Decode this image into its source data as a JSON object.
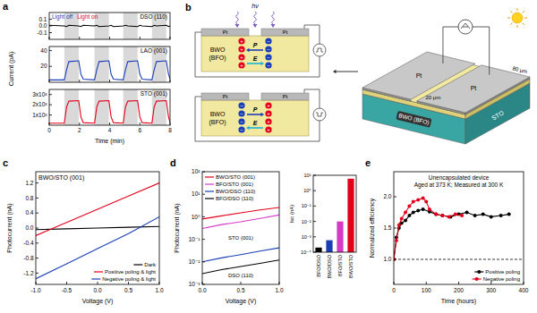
{
  "chart_data": [
    {
      "panel": "a",
      "type": "line",
      "title": "DSO (110)",
      "annotations": [
        "Light off",
        "Light on"
      ],
      "x": [
        0,
        1.0,
        1.15,
        1.3,
        1.95,
        2.1,
        2.25,
        3.0,
        3.15,
        3.3,
        3.95,
        4.1,
        4.25,
        4.9,
        5.05,
        5.2,
        5.85,
        6.0,
        6.15,
        6.8,
        6.95,
        7.1,
        7.75,
        7.9,
        8.0
      ],
      "series": [
        {
          "color": "#000000",
          "values": [
            0.01,
            0,
            -0.01,
            0.01,
            0,
            -0.01,
            0.01,
            0,
            0.01,
            -0.01,
            0,
            0.01,
            -0.01,
            0,
            0.01,
            0,
            -0.01,
            0.01,
            0,
            -0.01,
            0.01,
            0,
            0.01,
            -0.01,
            0
          ]
        }
      ],
      "light_on": [
        [
          1.0,
          1.95
        ],
        [
          3.0,
          3.95
        ],
        [
          4.9,
          5.85
        ],
        [
          6.8,
          7.75
        ]
      ],
      "xlim": [
        0,
        8
      ],
      "ylim": [
        -0.2,
        0.2
      ],
      "xticks": [
        0,
        2,
        4,
        6,
        8
      ],
      "yticks": [
        0.1,
        {
          "value": 0,
          "label": "0.0"
        },
        -0.1
      ],
      "tick_labels": "y"
    },
    {
      "type": "line",
      "title": "LAO (001)",
      "y_label": "Current (pA)",
      "x": [
        0,
        1.0,
        1.15,
        1.3,
        1.95,
        2.1,
        2.25,
        3.0,
        3.15,
        3.3,
        3.95,
        4.1,
        4.25,
        4.9,
        5.05,
        5.2,
        5.85,
        6.0,
        6.15,
        6.8,
        6.95,
        7.1,
        7.75,
        7.9,
        8.0
      ],
      "series": [
        {
          "color": "#1a3fb5",
          "values": [
            3,
            3,
            16,
            26,
            27,
            10,
            4,
            3,
            16,
            26,
            27,
            10,
            4,
            3,
            16,
            26,
            27,
            10,
            4,
            3,
            16,
            26,
            27,
            10,
            4
          ]
        }
      ],
      "light_on": [
        [
          1.0,
          1.95
        ],
        [
          3.0,
          3.95
        ],
        [
          4.9,
          5.85
        ],
        [
          6.8,
          7.75
        ]
      ],
      "xlim": [
        0,
        8
      ],
      "ylim": [
        0,
        45
      ],
      "xticks": [
        0,
        2,
        4,
        6,
        8
      ],
      "yticks": [
        20,
        40
      ],
      "tick_labels": "y"
    },
    {
      "type": "line",
      "title": "STO (001)",
      "x_label": "Time (min)",
      "x": [
        0,
        1.0,
        1.15,
        1.3,
        1.95,
        2.1,
        2.25,
        3.0,
        3.15,
        3.3,
        3.95,
        4.1,
        4.25,
        4.9,
        5.05,
        5.2,
        5.85,
        6.0,
        6.15,
        6.8,
        6.95,
        7.1,
        7.75,
        7.9,
        8.0
      ],
      "series": [
        {
          "color": "#e3001b",
          "values": [
            200,
            200,
            1800,
            2350,
            2400,
            800,
            250,
            200,
            1800,
            2350,
            2400,
            800,
            250,
            200,
            1800,
            2350,
            2400,
            800,
            250,
            200,
            1800,
            2350,
            2400,
            800,
            250
          ]
        }
      ],
      "light_on": [
        [
          1.0,
          1.95
        ],
        [
          3.0,
          3.95
        ],
        [
          4.9,
          5.85
        ],
        [
          6.8,
          7.75
        ]
      ],
      "xlim": [
        0,
        8
      ],
      "ylim": [
        0,
        3500
      ],
      "xticks": [
        0,
        2,
        4,
        6,
        8
      ],
      "yticks": [
        {
          "value": 1000,
          "label": "1x10³"
        },
        {
          "value": 2000,
          "label": "2x10³"
        },
        {
          "value": 3000,
          "label": "3x10³"
        }
      ]
    },
    {
      "panel": "c",
      "type": "line",
      "title": "BWO/STO (001)",
      "x_label": "Voltage (V)",
      "y_label": "Photocurrent (nA)",
      "x": [
        -1,
        -0.5,
        0,
        0.5,
        1
      ],
      "series": [
        {
          "name": "Dark",
          "color": "#000000",
          "values": [
            -0.04,
            -0.02,
            0,
            0.02,
            0.04
          ]
        },
        {
          "name": "Positive poling & light",
          "color": "#e3001b",
          "values": [
            -0.2,
            0.15,
            0.5,
            0.85,
            1.2
          ]
        },
        {
          "name": "Negative poling & light",
          "color": "#1a3fb5",
          "values": [
            -1.35,
            -0.95,
            -0.55,
            -0.15,
            0.3
          ]
        }
      ],
      "xlim": [
        -1,
        1
      ],
      "ylim": [
        -1.5,
        1.5
      ],
      "xticks": [
        {
          "value": -1,
          "label": "-1.0"
        },
        -0.5,
        {
          "value": 0,
          "label": "0.0"
        },
        0.5,
        {
          "value": 1,
          "label": "1.0"
        }
      ],
      "yticks": [
        -1.2,
        -0.8,
        -0.4,
        {
          "value": 0,
          "label": "0.0"
        },
        0.4,
        0.8,
        1.2
      ],
      "legend": "lower right"
    },
    {
      "panel": "d",
      "type": "line",
      "log": "y",
      "x_label": "Voltage (V)",
      "y_label": "Photocurrent (nA)",
      "annotations": [
        "STO (001)",
        "DSO (110)"
      ],
      "x": [
        0,
        0.25,
        0.5,
        0.75,
        1
      ],
      "series": [
        {
          "name": "BWO/STO (001)",
          "color": "#e3001b",
          "values": [
            0.8,
            1.1,
            1.5,
            2.0,
            2.6
          ]
        },
        {
          "name": "BFO/STO (001)",
          "color": "#d63bc8",
          "values": [
            0.3,
            0.45,
            0.6,
            0.85,
            1.2
          ]
        },
        {
          "name": "BWO/DSO (110)",
          "color": "#1a3fb5",
          "values": [
            0.01,
            0.015,
            0.021,
            0.03,
            0.042
          ]
        },
        {
          "name": "BFO/DSO (110)",
          "color": "#000000",
          "values": [
            0.003,
            0.0045,
            0.0062,
            0.0085,
            0.012
          ]
        }
      ],
      "xlim": [
        0,
        1
      ],
      "ylim": [
        0.001,
        100
      ],
      "xticks": [
        {
          "value": 0,
          "label": "0.0"
        },
        0.5,
        {
          "value": 1,
          "label": "1.0"
        }
      ],
      "yticks": [
        {
          "value": 0.001,
          "label": "10⁻³"
        },
        {
          "value": 0.01,
          "label": "10⁻²"
        },
        {
          "value": 0.1,
          "label": "10⁻¹"
        },
        {
          "value": 1,
          "label": "10⁰"
        },
        {
          "value": 10,
          "label": "10¹"
        },
        {
          "value": 100,
          "label": "10²"
        }
      ],
      "legend": "upper left"
    },
    {
      "type": "bar",
      "log": "y",
      "y_label": "Isc (nA)",
      "categories": [
        "BFO/DSO",
        "BWO/DSO",
        "BFO/STO",
        "BWO/STO"
      ],
      "values": [
        0.0002,
        0.0006,
        0.01,
        6
      ],
      "colors": [
        "#000000",
        "#1a3fb5",
        "#d63bc8",
        "#e3001b"
      ],
      "ylim": [
        0.0001,
        10
      ],
      "yticks": [
        {
          "value": 0.0001,
          "label": "10⁻⁴"
        },
        {
          "value": 0.001,
          "label": "10⁻³"
        },
        {
          "value": 0.01,
          "label": "10⁻²"
        },
        {
          "value": 0.1,
          "label": "10⁻¹"
        },
        {
          "value": 1,
          "label": "10⁰"
        },
        {
          "value": 10,
          "label": "10¹"
        }
      ]
    },
    {
      "panel": "e",
      "type": "line",
      "marker": "circle",
      "title": "Unencapsulated device",
      "subtitle": "Aged at 373 K; Measured at 300 K",
      "x_label": "Time (hours)",
      "y_label": "Normalized efficiency",
      "hline": 1,
      "series": [
        {
          "name": "Positive poling",
          "color": "#000000",
          "x": [
            0,
            8,
            16,
            24,
            36,
            48,
            60,
            75,
            90,
            110,
            130,
            150,
            175,
            200,
            225,
            250,
            275,
            300,
            330,
            355
          ],
          "values": [
            1.0,
            1.35,
            1.5,
            1.58,
            1.62,
            1.7,
            1.75,
            1.78,
            1.8,
            1.76,
            1.72,
            1.7,
            1.68,
            1.72,
            1.75,
            1.7,
            1.72,
            1.68,
            1.7,
            1.72
          ]
        },
        {
          "name": "Negative poling",
          "color": "#e3001b",
          "x": [
            0,
            8,
            16,
            24,
            36,
            48,
            60,
            75,
            90,
            100,
            110,
            130,
            150,
            170,
            190,
            210
          ],
          "values": [
            1.0,
            1.3,
            1.55,
            1.65,
            1.75,
            1.85,
            1.92,
            1.95,
            1.98,
            1.92,
            1.8,
            1.72,
            1.7,
            1.68,
            1.72,
            1.7
          ]
        }
      ],
      "xlim": [
        0,
        400
      ],
      "ylim": [
        0.6,
        2.4
      ],
      "xticks": [
        0,
        100,
        200,
        300,
        400
      ],
      "yticks": [
        {
          "value": 1,
          "label": "1.0"
        },
        1.5,
        {
          "value": 2,
          "label": "2.0"
        }
      ],
      "legend": "lower right"
    }
  ],
  "diagram": {
    "panel": "b",
    "light": "hν",
    "charge_signs": [
      "+",
      "−"
    ],
    "cross_sections": [
      {
        "electrodes": [
          "Pt",
          "Pt"
        ],
        "film": "BWO",
        "film_alt": "(BFO)",
        "polarization": "P",
        "field": "E"
      },
      {
        "electrodes": [
          "Pt",
          "Pt"
        ],
        "film": "BWO",
        "film_alt": "(BFO)",
        "polarization": "P",
        "field": "E"
      }
    ],
    "device": {
      "electrodes": [
        "Pt",
        "Pt"
      ],
      "film": "BWO (BFO)",
      "substrate": "STO",
      "gap": "20 μm",
      "length": "80 μm"
    }
  }
}
